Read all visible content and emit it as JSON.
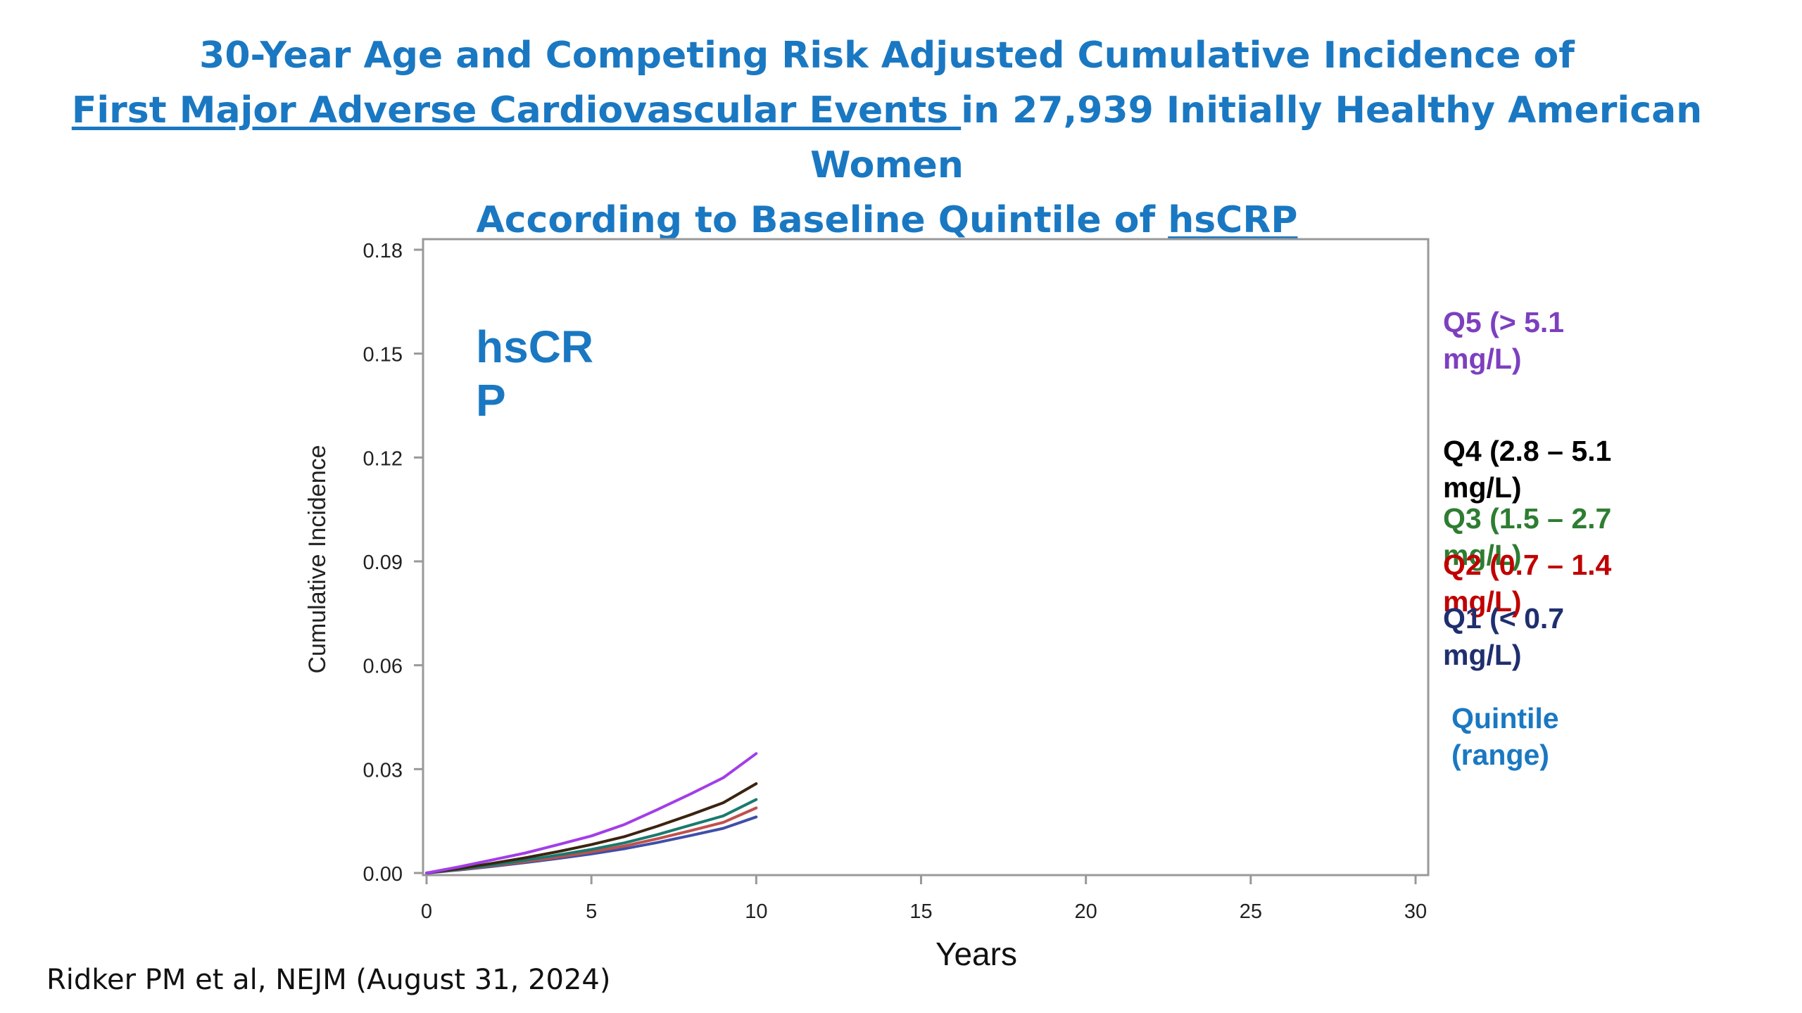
{
  "title": {
    "line1": "30-Year Age and Competing Risk Adjusted Cumulative Incidence of",
    "line2_underlined": "First Major Adverse Cardiovascular Events ",
    "line2_rest": "in 27,939 Initially Healthy American",
    "line3": "Women",
    "line4_prefix": "According to Baseline Quintile of ",
    "line4_underlined": "hsCRP"
  },
  "citation": "Ridker PM et al, NEJM (August 31, 2024)",
  "inset_label": {
    "line1": "hsCR",
    "line2": "P"
  },
  "legend_heading": {
    "line1": "Quintile",
    "line2": "(range)"
  },
  "legend": [
    {
      "line1": "Q5  (> 5.1",
      "line2": "mg/L)",
      "color": "#7d3fbf"
    },
    {
      "line1": "Q4  (2.8 – 5.1",
      "line2": "mg/L)",
      "color": "#000000"
    },
    {
      "line1": "Q3  (1.5 – 2.7",
      "line2": "mg/L)",
      "color": "#2e7d32"
    },
    {
      "line1": "Q2  (0.7 – 1.4",
      "line2": "mg/L)",
      "color": "#c00000"
    },
    {
      "line1": "Q1  (< 0.7",
      "line2": "mg/L)",
      "color": "#1f2f6e"
    }
  ],
  "chart_data": {
    "type": "line",
    "xlabel": "Years",
    "ylabel": "Cumulative Incidence",
    "xlim": [
      0,
      30
    ],
    "ylim": [
      0,
      0.18
    ],
    "xticks": [
      "0",
      "5",
      "10",
      "15",
      "20",
      "25",
      "30"
    ],
    "yticks": [
      "0.00",
      "0.03",
      "0.06",
      "0.09",
      "0.12",
      "0.15",
      "0.18"
    ],
    "grid": false,
    "x": [
      0,
      1,
      2,
      3,
      4,
      5,
      6,
      7,
      8,
      9,
      10
    ],
    "series": [
      {
        "name": "Q5  (> 5.1 mg/L)",
        "color": "#a23ee8",
        "values": [
          0,
          0.0018,
          0.0038,
          0.0058,
          0.0082,
          0.0107,
          0.014,
          0.0183,
          0.0228,
          0.0275,
          0.0345
        ]
      },
      {
        "name": "Q4  (2.8 – 5.1 mg/L)",
        "color": "#3a2410",
        "values": [
          0,
          0.0013,
          0.0028,
          0.0044,
          0.0062,
          0.0082,
          0.0105,
          0.0135,
          0.0168,
          0.0203,
          0.0258
        ]
      },
      {
        "name": "Q3  (1.5 – 2.7 mg/L)",
        "color": "#1a7a6e",
        "values": [
          0,
          0.0011,
          0.0023,
          0.0037,
          0.0052,
          0.0068,
          0.0087,
          0.0111,
          0.0138,
          0.0165,
          0.0212
        ]
      },
      {
        "name": "Q2  (0.7 – 1.4 mg/L)",
        "color": "#c0504d",
        "values": [
          0,
          0.001,
          0.0021,
          0.0033,
          0.0046,
          0.0061,
          0.0078,
          0.0099,
          0.0122,
          0.0146,
          0.0188
        ]
      },
      {
        "name": "Q1  (< 0.7 mg/L)",
        "color": "#3f4fa8",
        "values": [
          0,
          0.0009,
          0.0019,
          0.003,
          0.0042,
          0.0055,
          0.007,
          0.0088,
          0.0108,
          0.0129,
          0.0162
        ]
      }
    ]
  }
}
